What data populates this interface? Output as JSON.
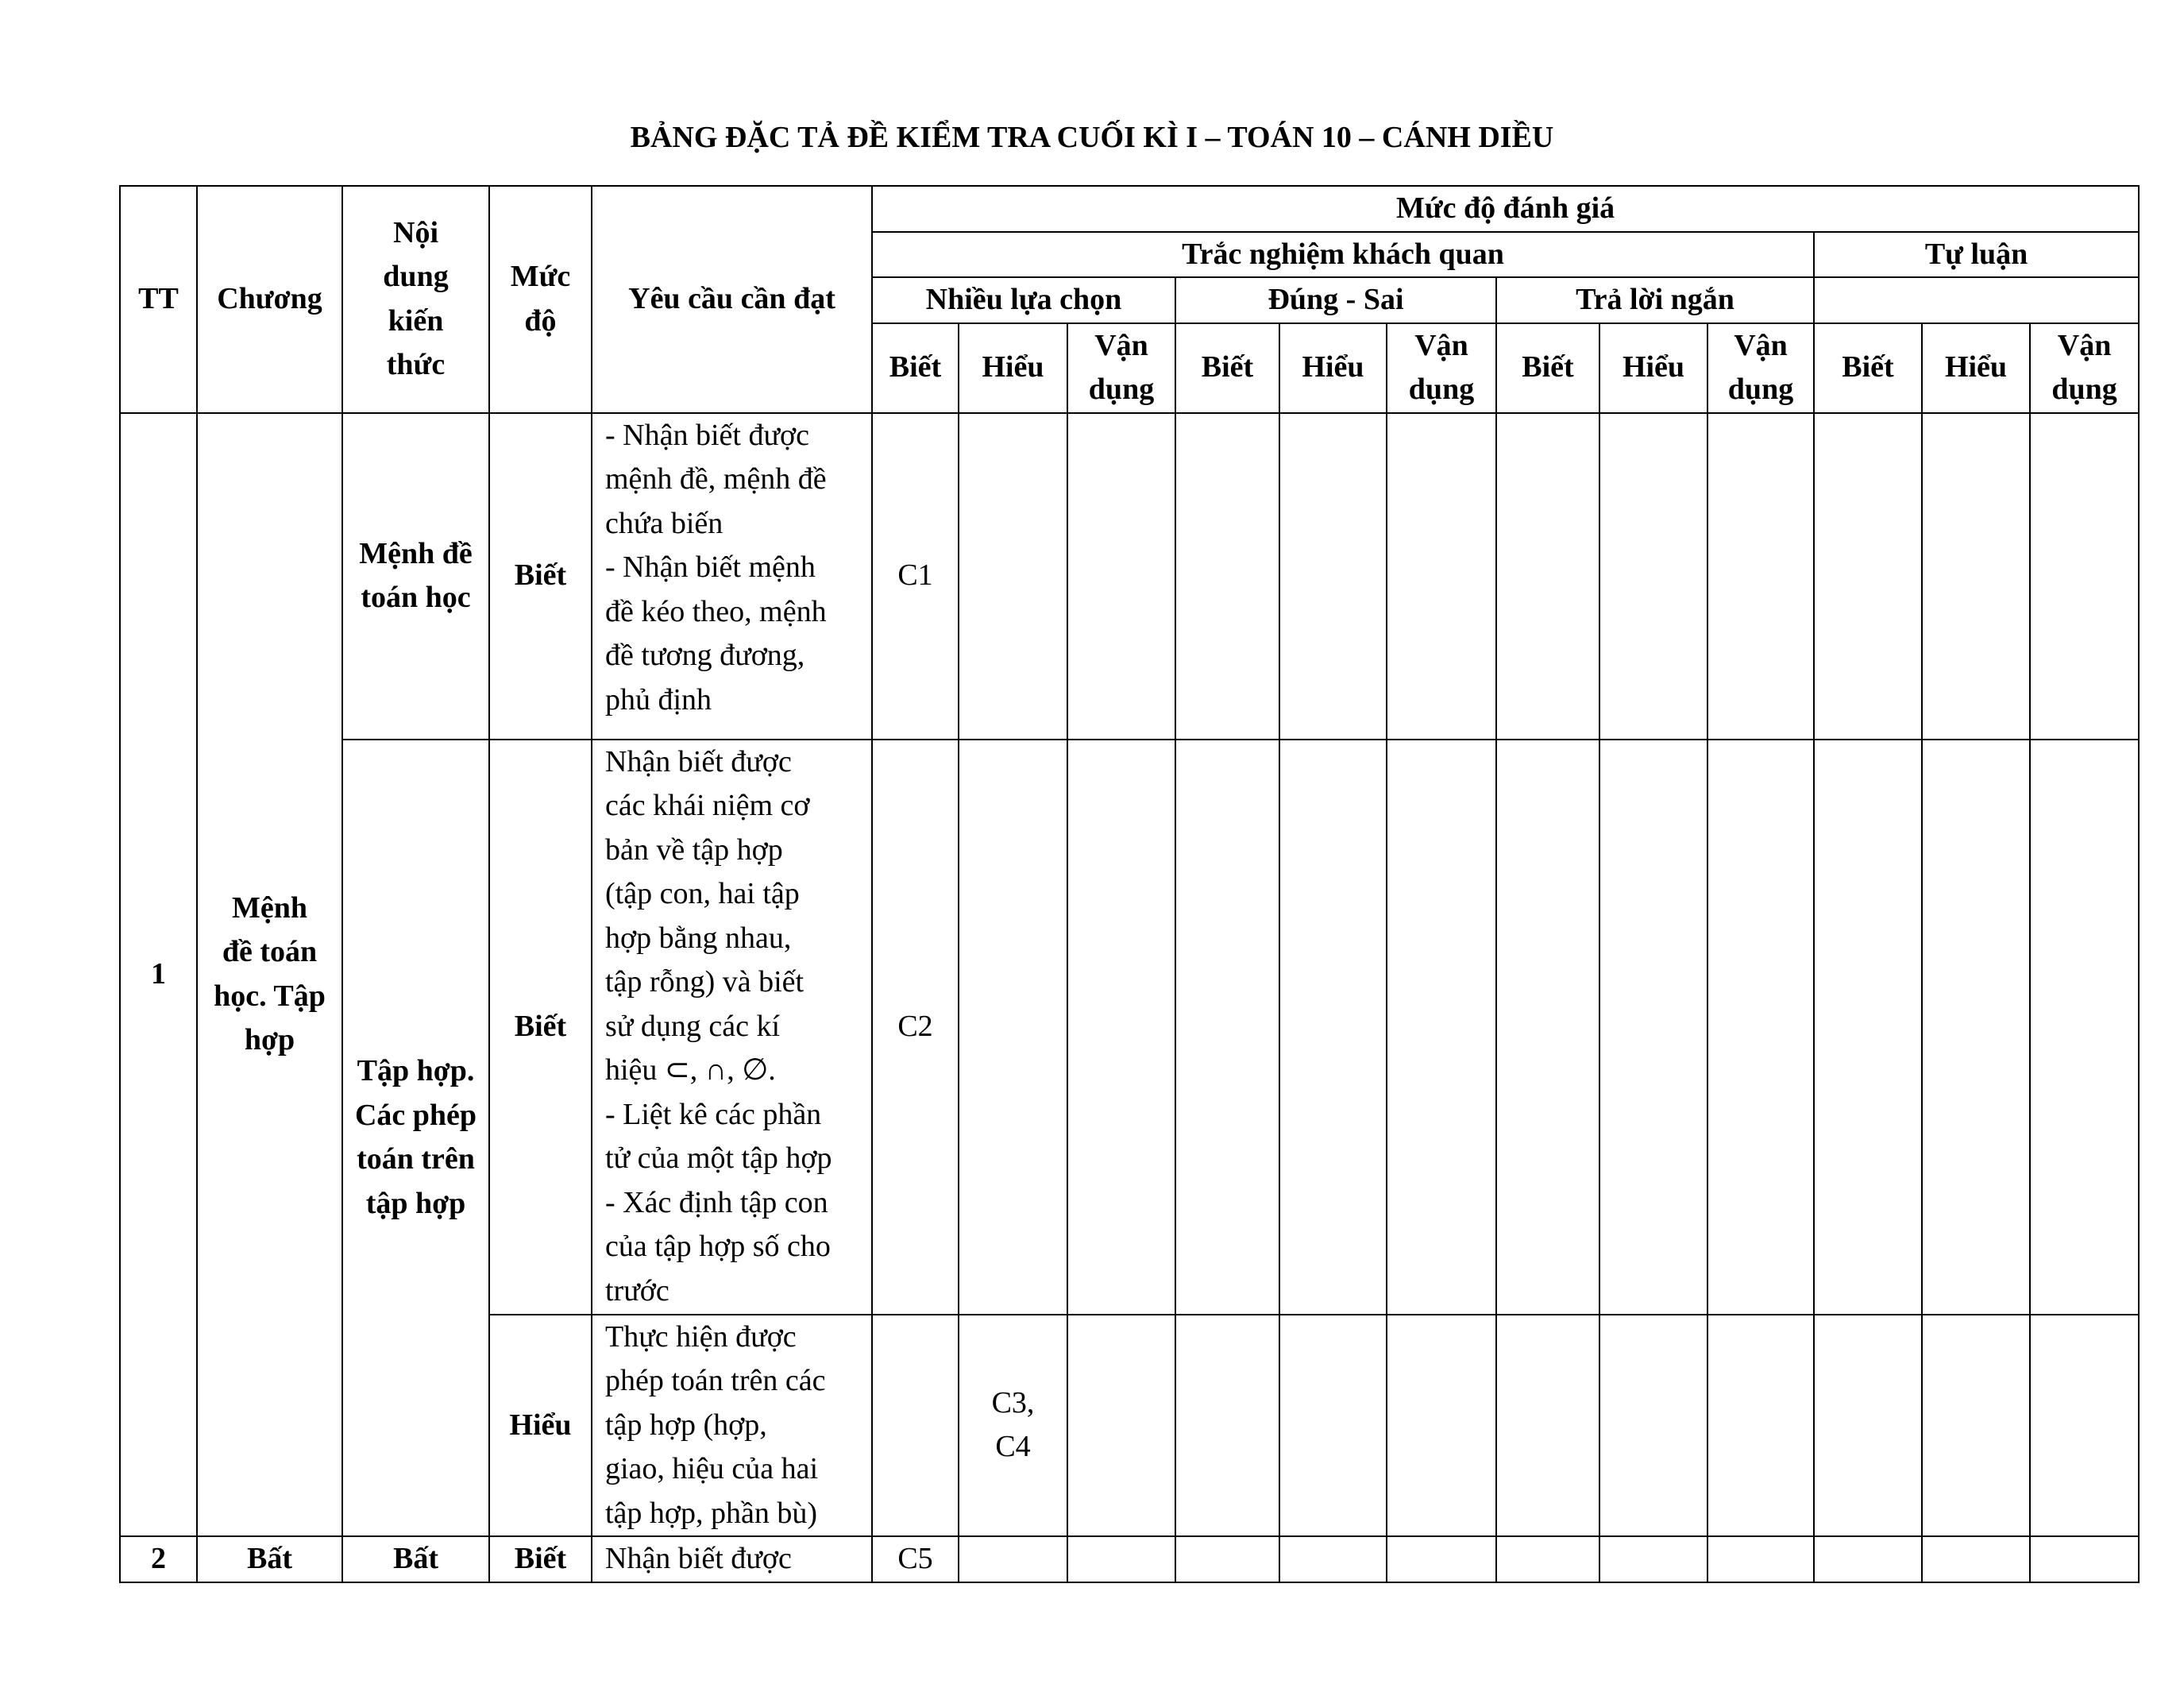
{
  "title": "BẢNG ĐẶC TẢ ĐỀ KIỂM TRA CUỐI KÌ I – TOÁN 10 – CÁNH DIỀU",
  "header": {
    "tt": "TT",
    "chuong": "Chương",
    "noi_dung": "Nội dung kiến thức",
    "muc_do": "Mức độ",
    "yeu_cau": "Yêu cầu cần đạt",
    "danh_gia": "Mức độ đánh giá",
    "trac_nghiem": "Trắc nghiệm khách quan",
    "tu_luan": "Tự luận",
    "nhieu_lua_chon": "Nhiều lựa chọn",
    "dung_sai": "Đúng - Sai",
    "tra_loi_ngan": "Trả lời ngắn",
    "levels": [
      "Biết",
      "Hiểu",
      "Vận dụng",
      "Biết",
      "Hiểu",
      "Vận dụng",
      "Biết",
      "Hiểu",
      "Vận dụng",
      "Biết",
      "Hiểu",
      "Vận dụng"
    ]
  },
  "rows": [
    {
      "tt": "1",
      "chuong": "Mệnh đề toán học. Tập hợp",
      "noi_dung": "Mệnh đề toán học",
      "muc_do": "Biết",
      "yeu_cau": "- Nhận biết được\nmệnh đề, mệnh đề\nchứa biến\n- Nhận biết mệnh\nđề kéo theo, mệnh\nđề tương đương,\nphủ định",
      "cells": [
        "C1",
        "",
        "",
        "",
        "",
        "",
        "",
        "",
        "",
        "",
        "",
        ""
      ]
    },
    {
      "noi_dung": "Tập hợp. Các phép toán trên tập hợp",
      "muc_do": "Biết",
      "yeu_cau": "Nhận biết được\ncác khái niệm cơ\nbản về tập hợp\n(tập con, hai tập\nhợp bằng nhau,\ntập rỗng) và biết\nsử dụng các kí\nhiệu ⊂, ∩, ∅.\n- Liệt kê các phần\ntử của một tập hợp\n- Xác định tập con\ncủa tập hợp số cho\ntrước",
      "cells": [
        "C2",
        "",
        "",
        "",
        "",
        "",
        "",
        "",
        "",
        "",
        "",
        ""
      ]
    },
    {
      "muc_do": "Hiểu",
      "yeu_cau": "Thực hiện được\nphép toán trên các\ntập hợp (hợp,\ngiao, hiệu của hai\ntập hợp, phần bù)",
      "cells": [
        "",
        "C3,\nC4",
        "",
        "",
        "",
        "",
        "",
        "",
        "",
        "",
        "",
        ""
      ]
    },
    {
      "tt": "2",
      "chuong": "Bất",
      "noi_dung": "Bất",
      "muc_do": "Biết",
      "yeu_cau": "Nhận biết được",
      "cells": [
        "C5",
        "",
        "",
        "",
        "",
        "",
        "",
        "",
        "",
        "",
        "",
        ""
      ]
    }
  ]
}
